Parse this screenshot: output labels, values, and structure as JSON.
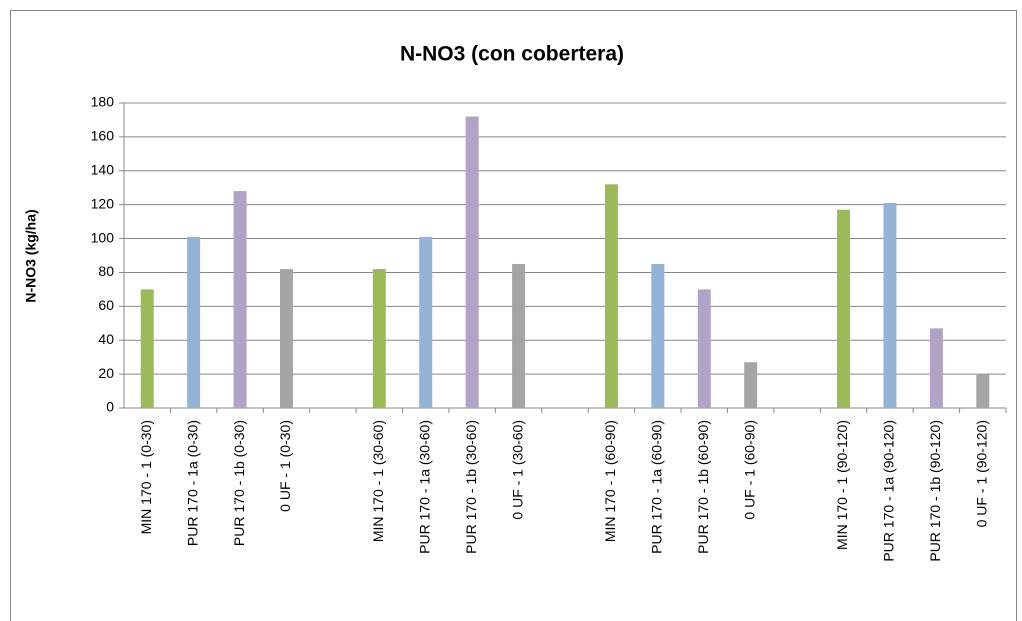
{
  "chart_data": {
    "type": "bar",
    "title": "N-NO3 (con cobertera)",
    "ylabel": "N-NO3 (kg/ha)",
    "categories": [
      "MIN 170 - 1 (0-30)",
      "PUR 170 - 1a (0-30)",
      "PUR 170 - 1b (0-30)",
      "0 UF - 1 (0-30)",
      null,
      "MIN 170 - 1 (30-60)",
      "PUR 170 - 1a (30-60)",
      "PUR 170 - 1b (30-60)",
      "0 UF - 1 (30-60)",
      null,
      "MIN 170 - 1 (60-90)",
      "PUR 170 - 1a (60-90)",
      "PUR 170 - 1b (60-90)",
      "0 UF - 1 (60-90)",
      null,
      "MIN 170 - 1 (90-120)",
      "PUR 170 - 1a (90-120)",
      "PUR 170 - 1b (90-120)",
      "0 UF - 1 (90-120)"
    ],
    "values": [
      70,
      101,
      128,
      82,
      null,
      82,
      101,
      172,
      85,
      null,
      132,
      85,
      70,
      27,
      null,
      117,
      121,
      47,
      20
    ],
    "colors": [
      "#9bbb59",
      "#95b3d7",
      "#b3a2c7",
      "#a5a5a5",
      null,
      "#9bbb59",
      "#95b3d7",
      "#b3a2c7",
      "#a5a5a5",
      null,
      "#9bbb59",
      "#95b3d7",
      "#b3a2c7",
      "#a5a5a5",
      null,
      "#9bbb59",
      "#95b3d7",
      "#b3a2c7",
      "#a5a5a5"
    ],
    "ylim": [
      0,
      180
    ],
    "yticks": [
      0,
      20,
      40,
      60,
      80,
      100,
      120,
      140,
      160,
      180
    ],
    "grid": true
  }
}
